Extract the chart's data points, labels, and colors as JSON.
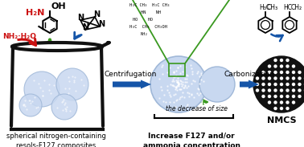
{
  "bg_color": "#ffffff",
  "beaker_color": "#111111",
  "sphere_fill": "#c8d8f0",
  "sphere_edge": "#a0b8d8",
  "arrow_blue": "#1555a8",
  "arrow_green": "#3a9920",
  "arrow_red": "#cc1111",
  "text_label1": "spherical nitrogen-containing\nresols-F127 composites",
  "text_label2": "Increase F127 and/or\nammonia concentration",
  "text_nmcs": "NMCS",
  "text_centrifugation": "Centrifugation",
  "text_carbonization": "Carbonization",
  "text_decrease": "the decrease of size",
  "text_nh2h2o": "NH₂·H₂O",
  "text_h2n": "H₂N",
  "text_oh": "OH"
}
